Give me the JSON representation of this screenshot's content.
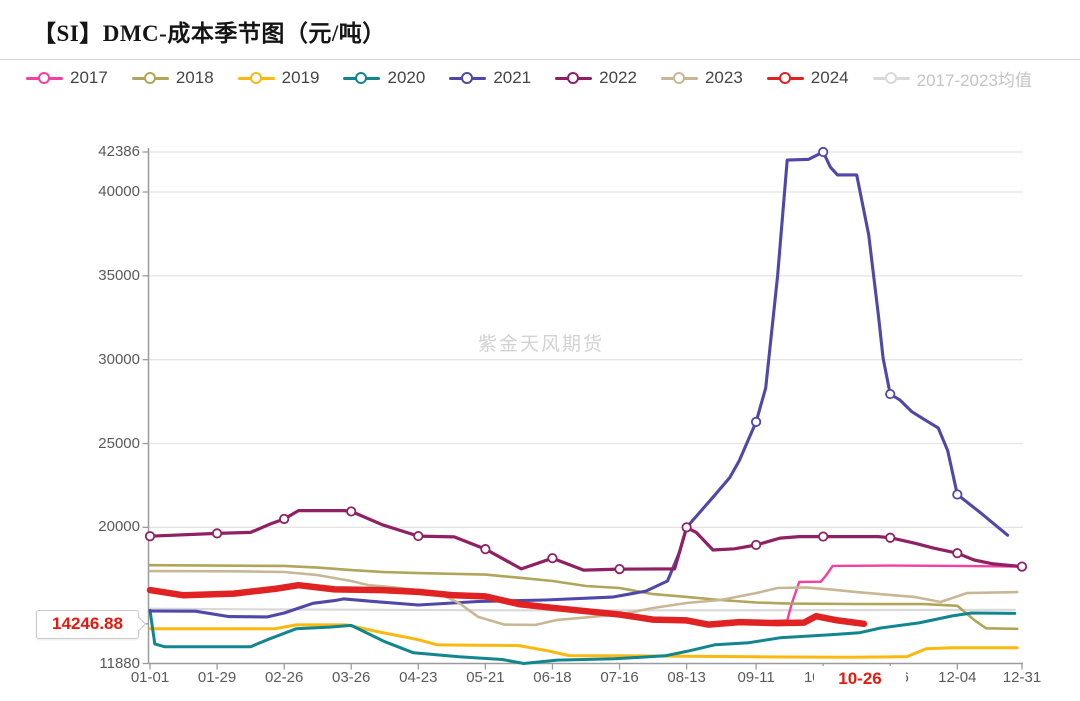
{
  "header": {
    "title": "【SI】DMC-成本季节图（元/吨）"
  },
  "watermark": "紫金天风期货",
  "legend": {
    "items": [
      {
        "label": "2017",
        "color": "#f33fa2",
        "dimmed": false
      },
      {
        "label": "2018",
        "color": "#b1a559",
        "dimmed": false
      },
      {
        "label": "2019",
        "color": "#fbb80f",
        "dimmed": false
      },
      {
        "label": "2020",
        "color": "#12858e",
        "dimmed": false
      },
      {
        "label": "2021",
        "color": "#5048a8",
        "dimmed": false
      },
      {
        "label": "2022",
        "color": "#8e2063",
        "dimmed": false
      },
      {
        "label": "2023",
        "color": "#c8b795",
        "dimmed": false
      },
      {
        "label": "2024",
        "color": "#e02222",
        "dimmed": false
      },
      {
        "label": "2017-2023均值",
        "color": "#d9d9d9",
        "dimmed": true
      }
    ]
  },
  "axis": {
    "y_ticks": [
      {
        "label": "42386",
        "value": 42386,
        "gridline": true,
        "highlight": false
      },
      {
        "label": "40000",
        "value": 40000,
        "gridline": true,
        "highlight": false
      },
      {
        "label": "35000",
        "value": 35000,
        "gridline": true,
        "highlight": false
      },
      {
        "label": "30000",
        "value": 30000,
        "gridline": true,
        "highlight": false
      },
      {
        "label": "25000",
        "value": 25000,
        "gridline": true,
        "highlight": false
      },
      {
        "label": "20000",
        "value": 20000,
        "gridline": true,
        "highlight": false
      },
      {
        "label": "14246.88",
        "value": 14246.88,
        "gridline": false,
        "highlight": true
      },
      {
        "label": "11880",
        "value": 11880,
        "gridline": false,
        "highlight": false
      }
    ],
    "y_current": {
      "label": "14246.88",
      "value": 14246.88,
      "color": "#e11b12"
    },
    "x_ticks": [
      {
        "label": "01-01"
      },
      {
        "label": "01-29"
      },
      {
        "label": "02-26"
      },
      {
        "label": "03-26"
      },
      {
        "label": "04-23"
      },
      {
        "label": "05-21"
      },
      {
        "label": "06-18"
      },
      {
        "label": "07-16"
      },
      {
        "label": "08-13"
      },
      {
        "label": "09-11"
      },
      {
        "label": "10-09"
      },
      {
        "label": "11-06"
      },
      {
        "label": "12-04"
      },
      {
        "label": "12-31"
      }
    ],
    "x_current": {
      "label": "10-26",
      "color": "#e11b12"
    }
  },
  "chart_data": {
    "type": "line",
    "title": "【SI】DMC-成本季节图（元/吨）",
    "xlabel": "",
    "ylabel": "元/吨",
    "ylim": [
      11880,
      42386
    ],
    "x_tick_labels": [
      "01-01",
      "01-29",
      "02-26",
      "03-26",
      "04-23",
      "05-21",
      "06-18",
      "07-16",
      "08-13",
      "09-11",
      "10-09",
      "11-06",
      "12-04",
      "12-31"
    ],
    "current_value": 14246.88,
    "current_date": "10-26",
    "legend_position": "top",
    "grid": true,
    "series": [
      {
        "name": "2017-2023均值",
        "color": "#d9d9d9",
        "width": 2.2,
        "marker_dates": [],
        "points": [
          [
            "01-01",
            15150
          ],
          [
            "03-01",
            15100
          ],
          [
            "06-01",
            15050
          ],
          [
            "09-01",
            15050
          ],
          [
            "12-28",
            15080
          ]
        ]
      },
      {
        "name": "2017",
        "color": "#f33fa2",
        "width": 2.4,
        "marker_dates": [],
        "points": [
          [
            "09-18",
            14420
          ],
          [
            "09-24",
            14450
          ],
          [
            "09-26",
            15500
          ],
          [
            "09-29",
            16740
          ],
          [
            "10-08",
            16760
          ],
          [
            "10-10",
            17100
          ],
          [
            "10-13",
            17700
          ],
          [
            "11-06",
            17720
          ],
          [
            "12-04",
            17700
          ],
          [
            "12-31",
            17660
          ]
        ]
      },
      {
        "name": "2018",
        "color": "#b1a559",
        "width": 2.6,
        "marker_dates": [],
        "points": [
          [
            "01-01",
            17740
          ],
          [
            "01-29",
            17720
          ],
          [
            "02-26",
            17700
          ],
          [
            "03-12",
            17600
          ],
          [
            "03-26",
            17450
          ],
          [
            "04-09",
            17330
          ],
          [
            "04-23",
            17270
          ],
          [
            "05-07",
            17230
          ],
          [
            "05-21",
            17180
          ],
          [
            "06-04",
            17000
          ],
          [
            "06-18",
            16800
          ],
          [
            "07-02",
            16500
          ],
          [
            "07-16",
            16380
          ],
          [
            "07-30",
            16020
          ],
          [
            "08-13",
            15850
          ],
          [
            "08-27",
            15670
          ],
          [
            "09-11",
            15520
          ],
          [
            "09-25",
            15450
          ],
          [
            "10-23",
            15430
          ],
          [
            "11-20",
            15420
          ],
          [
            "12-04",
            15320
          ],
          [
            "12-11",
            14480
          ],
          [
            "12-16",
            13980
          ],
          [
            "12-29",
            13950
          ]
        ]
      },
      {
        "name": "2019",
        "color": "#fbb80f",
        "width": 3,
        "marker_dates": [],
        "points": [
          [
            "01-01",
            13950
          ],
          [
            "02-22",
            13950
          ],
          [
            "03-03",
            14180
          ],
          [
            "03-24",
            14180
          ],
          [
            "04-07",
            13750
          ],
          [
            "04-23",
            13300
          ],
          [
            "05-01",
            12990
          ],
          [
            "06-04",
            12950
          ],
          [
            "06-16",
            12640
          ],
          [
            "06-25",
            12350
          ],
          [
            "07-30",
            12330
          ],
          [
            "09-11",
            12280
          ],
          [
            "10-21",
            12250
          ],
          [
            "11-13",
            12290
          ],
          [
            "11-21",
            12760
          ],
          [
            "12-02",
            12820
          ],
          [
            "12-29",
            12820
          ]
        ]
      },
      {
        "name": "2020",
        "color": "#12858e",
        "width": 3,
        "marker_dates": [],
        "points": [
          [
            "01-01",
            15050
          ],
          [
            "01-03",
            13050
          ],
          [
            "01-07",
            12880
          ],
          [
            "02-12",
            12880
          ],
          [
            "02-19",
            13300
          ],
          [
            "03-03",
            13950
          ],
          [
            "03-17",
            14050
          ],
          [
            "03-26",
            14150
          ],
          [
            "04-09",
            13180
          ],
          [
            "04-21",
            12520
          ],
          [
            "05-10",
            12280
          ],
          [
            "05-28",
            12120
          ],
          [
            "06-06",
            11880
          ],
          [
            "06-20",
            12080
          ],
          [
            "07-14",
            12160
          ],
          [
            "08-04",
            12340
          ],
          [
            "08-13",
            12600
          ],
          [
            "08-25",
            13000
          ],
          [
            "09-08",
            13120
          ],
          [
            "09-21",
            13410
          ],
          [
            "10-12",
            13590
          ],
          [
            "10-24",
            13710
          ],
          [
            "11-02",
            14000
          ],
          [
            "11-18",
            14300
          ],
          [
            "12-02",
            14720
          ],
          [
            "12-10",
            14890
          ],
          [
            "12-28",
            14870
          ]
        ]
      },
      {
        "name": "2021",
        "color": "#5048a8",
        "width": 3.1,
        "marker_dates": [
          "09-11",
          "10-09",
          "11-06",
          "12-04"
        ],
        "points": [
          [
            "01-01",
            15010
          ],
          [
            "01-20",
            15000
          ],
          [
            "02-03",
            14680
          ],
          [
            "02-19",
            14660
          ],
          [
            "02-26",
            14890
          ],
          [
            "03-10",
            15470
          ],
          [
            "03-19",
            15630
          ],
          [
            "03-23",
            15730
          ],
          [
            "04-06",
            15560
          ],
          [
            "04-23",
            15370
          ],
          [
            "05-18",
            15580
          ],
          [
            "06-15",
            15670
          ],
          [
            "07-13",
            15840
          ],
          [
            "07-27",
            16200
          ],
          [
            "08-05",
            16800
          ],
          [
            "08-10",
            18500
          ],
          [
            "08-13",
            20000
          ],
          [
            "08-24",
            21800
          ],
          [
            "08-31",
            22970
          ],
          [
            "09-04",
            23980
          ],
          [
            "09-11",
            26290
          ],
          [
            "09-15",
            28310
          ],
          [
            "09-20",
            35000
          ],
          [
            "09-24",
            41900
          ],
          [
            "10-03",
            41950
          ],
          [
            "10-09",
            42386
          ],
          [
            "10-12",
            41480
          ],
          [
            "10-15",
            41020
          ],
          [
            "10-23",
            41020
          ],
          [
            "10-28",
            37450
          ],
          [
            "11-01",
            32700
          ],
          [
            "11-03",
            30090
          ],
          [
            "11-06",
            27950
          ],
          [
            "11-10",
            27600
          ],
          [
            "11-15",
            26900
          ],
          [
            "11-20",
            26450
          ],
          [
            "11-26",
            25930
          ],
          [
            "11-30",
            24570
          ],
          [
            "12-04",
            21960
          ],
          [
            "12-14",
            20830
          ],
          [
            "12-25",
            19530
          ]
        ]
      },
      {
        "name": "2023",
        "color": "#c8b795",
        "width": 2.6,
        "marker_dates": [],
        "points": [
          [
            "01-01",
            17390
          ],
          [
            "02-05",
            17380
          ],
          [
            "02-26",
            17340
          ],
          [
            "03-12",
            17150
          ],
          [
            "03-26",
            16800
          ],
          [
            "04-02",
            16560
          ],
          [
            "04-13",
            16420
          ],
          [
            "04-23",
            16250
          ],
          [
            "05-01",
            16100
          ],
          [
            "05-10",
            15490
          ],
          [
            "05-18",
            14660
          ],
          [
            "05-29",
            14200
          ],
          [
            "06-11",
            14180
          ],
          [
            "06-20",
            14480
          ],
          [
            "07-16",
            14800
          ],
          [
            "07-30",
            15190
          ],
          [
            "08-13",
            15490
          ],
          [
            "08-27",
            15670
          ],
          [
            "09-11",
            16080
          ],
          [
            "09-20",
            16380
          ],
          [
            "10-02",
            16420
          ],
          [
            "10-12",
            16300
          ],
          [
            "10-23",
            16140
          ],
          [
            "11-06",
            15970
          ],
          [
            "11-16",
            15850
          ],
          [
            "11-27",
            15550
          ],
          [
            "12-08",
            16080
          ],
          [
            "12-29",
            16140
          ]
        ]
      },
      {
        "name": "2022",
        "color": "#8e2063",
        "width": 3.2,
        "marker_dates": [
          "01-01",
          "01-29",
          "02-26",
          "03-26",
          "04-23",
          "05-21",
          "06-18",
          "07-16",
          "08-13",
          "09-11",
          "10-09",
          "11-06",
          "12-04",
          "12-31"
        ],
        "points": [
          [
            "01-01",
            19470
          ],
          [
            "01-29",
            19640
          ],
          [
            "02-12",
            19700
          ],
          [
            "02-21",
            20250
          ],
          [
            "02-26",
            20500
          ],
          [
            "03-04",
            21000
          ],
          [
            "03-23",
            21000
          ],
          [
            "03-26",
            20950
          ],
          [
            "04-08",
            20150
          ],
          [
            "04-23",
            19480
          ],
          [
            "05-08",
            19430
          ],
          [
            "05-21",
            18700
          ],
          [
            "06-05",
            17520
          ],
          [
            "06-18",
            18160
          ],
          [
            "07-01",
            17450
          ],
          [
            "07-16",
            17510
          ],
          [
            "08-08",
            17520
          ],
          [
            "08-13",
            20000
          ],
          [
            "08-17",
            19700
          ],
          [
            "08-24",
            18650
          ],
          [
            "09-02",
            18720
          ],
          [
            "09-11",
            18950
          ],
          [
            "09-21",
            19360
          ],
          [
            "09-29",
            19450
          ],
          [
            "10-09",
            19450
          ],
          [
            "11-01",
            19450
          ],
          [
            "11-06",
            19380
          ],
          [
            "11-16",
            19060
          ],
          [
            "11-24",
            18760
          ],
          [
            "12-04",
            18460
          ],
          [
            "12-11",
            18050
          ],
          [
            "12-19",
            17820
          ],
          [
            "12-31",
            17660
          ]
        ]
      },
      {
        "name": "2024",
        "color": "#e02222",
        "width": 6.5,
        "marker_dates": [],
        "points": [
          [
            "01-01",
            16260
          ],
          [
            "01-15",
            15950
          ],
          [
            "02-05",
            16050
          ],
          [
            "02-23",
            16350
          ],
          [
            "03-04",
            16550
          ],
          [
            "03-19",
            16300
          ],
          [
            "04-09",
            16250
          ],
          [
            "04-23",
            16150
          ],
          [
            "05-08",
            15950
          ],
          [
            "05-21",
            15880
          ],
          [
            "06-04",
            15420
          ],
          [
            "06-18",
            15200
          ],
          [
            "07-02",
            15000
          ],
          [
            "07-16",
            14800
          ],
          [
            "07-30",
            14500
          ],
          [
            "08-13",
            14450
          ],
          [
            "08-22",
            14200
          ],
          [
            "09-04",
            14350
          ],
          [
            "09-20",
            14290
          ],
          [
            "10-01",
            14320
          ],
          [
            "10-06",
            14700
          ],
          [
            "10-15",
            14450
          ],
          [
            "10-26",
            14246.88
          ]
        ]
      }
    ]
  }
}
